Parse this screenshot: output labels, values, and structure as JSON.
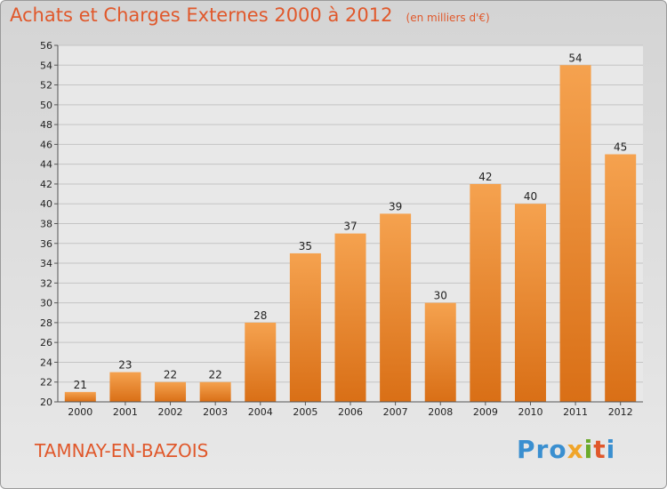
{
  "header": {
    "title": "Achats et Charges Externes 2000 à 2012",
    "subtitle": "(en milliers d'€)"
  },
  "footer": {
    "location": "TAMNAY-EN-BAZOIS",
    "brand_parts": [
      "Pro",
      "x",
      "i",
      "t",
      "i"
    ]
  },
  "colors": {
    "bar_top": "#f5a24f",
    "bar_bottom": "#d96f16",
    "accent": "#e0582b"
  },
  "chart_data": {
    "type": "bar",
    "title": "Achats et Charges Externes 2000 à 2012",
    "subtitle": "(en milliers d'€)",
    "categories": [
      "2000",
      "2001",
      "2002",
      "2003",
      "2004",
      "2005",
      "2006",
      "2007",
      "2008",
      "2009",
      "2010",
      "2011",
      "2012"
    ],
    "values": [
      21,
      23,
      22,
      22,
      28,
      35,
      37,
      39,
      30,
      42,
      40,
      54,
      45
    ],
    "ylim": [
      20,
      56
    ],
    "yticks": [
      20,
      22,
      24,
      26,
      28,
      30,
      32,
      34,
      36,
      38,
      40,
      42,
      44,
      46,
      48,
      50,
      52,
      54,
      56
    ],
    "grid": true,
    "xlabel": "",
    "ylabel": ""
  }
}
